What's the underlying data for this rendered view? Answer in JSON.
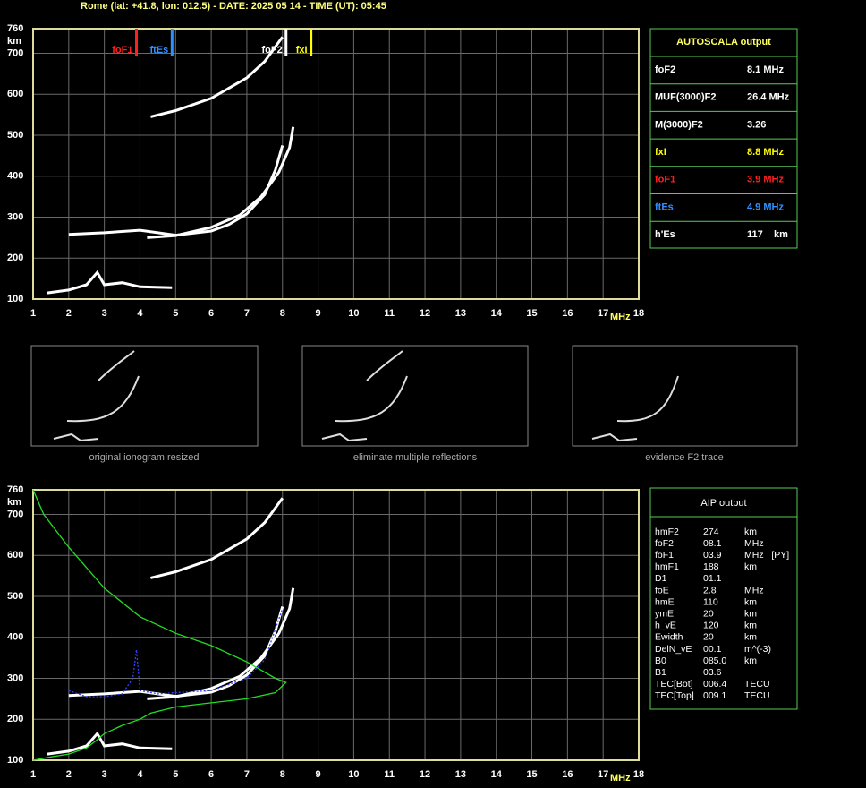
{
  "header": "Rome (lat: +41.8, lon: 012.5) - DATE: 2025 05 14 - TIME (UT): 05:45",
  "chart_data": [
    {
      "type": "scatter",
      "xlabel": "MHz",
      "ylabel": "km",
      "xlim": [
        1,
        18
      ],
      "xticks": [
        1,
        2,
        3,
        4,
        5,
        6,
        7,
        8,
        9,
        10,
        11,
        12,
        13,
        14,
        15,
        16,
        17,
        18
      ],
      "ylim": [
        100,
        760
      ],
      "yticks": [
        100,
        200,
        300,
        400,
        500,
        600,
        700,
        760
      ],
      "grid": true,
      "series": [
        {
          "color": "#ffffff",
          "x": [
            2.0,
            3.0,
            4.0,
            5.0,
            6.0,
            6.5,
            7.0,
            7.5,
            7.8,
            8.0
          ],
          "y": [
            258,
            262,
            268,
            256,
            266,
            282,
            308,
            355,
            415,
            475
          ]
        },
        {
          "color": "#ffffff",
          "x": [
            4.2,
            5.0,
            6.0,
            6.8,
            7.4,
            7.9,
            8.2,
            8.3
          ],
          "y": [
            250,
            255,
            275,
            305,
            350,
            410,
            470,
            520
          ]
        },
        {
          "color": "#ffffff",
          "x": [
            4.3,
            5.0,
            6.0,
            7.0,
            7.5,
            8.0
          ],
          "y": [
            545,
            560,
            590,
            640,
            680,
            740
          ]
        },
        {
          "color": "#ffffff",
          "x": [
            1.4,
            2.0,
            2.5,
            2.8,
            3.0,
            3.5,
            4.0,
            4.9
          ],
          "y": [
            115,
            122,
            135,
            165,
            135,
            140,
            130,
            128
          ]
        }
      ],
      "markers": [
        {
          "label": "foF1",
          "x": 3.9,
          "color": "#ff2020"
        },
        {
          "label": "ftEs",
          "x": 4.9,
          "color": "#3090ff"
        },
        {
          "label": "foF2",
          "x": 8.1,
          "color": "#ffffff"
        },
        {
          "label": "fxI",
          "x": 8.8,
          "color": "#ffff00"
        }
      ]
    },
    {
      "type": "scatter",
      "xlabel": "MHz",
      "ylabel": "km",
      "xlim": [
        1,
        18
      ],
      "xticks": [
        1,
        2,
        3,
        4,
        5,
        6,
        7,
        8,
        9,
        10,
        11,
        12,
        13,
        14,
        15,
        16,
        17,
        18
      ],
      "ylim": [
        100,
        760
      ],
      "yticks": [
        100,
        200,
        300,
        400,
        500,
        600,
        700,
        760
      ],
      "grid": true,
      "series": [
        {
          "color": "#ffffff",
          "x": [
            2.0,
            3.0,
            4.0,
            5.0,
            6.0,
            6.5,
            7.0,
            7.5,
            7.8,
            8.0
          ],
          "y": [
            258,
            262,
            268,
            256,
            266,
            282,
            308,
            355,
            415,
            475
          ]
        },
        {
          "color": "#ffffff",
          "x": [
            4.2,
            5.0,
            6.0,
            6.8,
            7.4,
            7.9,
            8.2,
            8.3
          ],
          "y": [
            250,
            255,
            275,
            305,
            350,
            410,
            470,
            520
          ]
        },
        {
          "color": "#ffffff",
          "x": [
            4.3,
            5.0,
            6.0,
            7.0,
            7.5,
            8.0
          ],
          "y": [
            545,
            560,
            590,
            640,
            680,
            740
          ]
        },
        {
          "color": "#ffffff",
          "x": [
            1.4,
            2.0,
            2.5,
            2.8,
            3.0,
            3.5,
            4.0,
            4.9
          ],
          "y": [
            115,
            122,
            135,
            165,
            135,
            140,
            130,
            128
          ]
        },
        {
          "color": "#22dd22",
          "x": [
            1.0,
            1.3,
            2.0,
            3.0,
            4.0,
            5.0,
            6.0,
            7.0,
            7.8,
            8.1,
            7.8,
            7.0,
            6.0,
            5.0,
            4.3,
            4.0,
            3.5,
            3.0,
            2.8,
            2.5,
            2.0,
            1.5,
            1.0
          ],
          "y": [
            760,
            700,
            620,
            520,
            450,
            410,
            380,
            340,
            300,
            290,
            265,
            250,
            240,
            230,
            215,
            200,
            185,
            165,
            150,
            130,
            115,
            108,
            100
          ]
        },
        {
          "color": "#3040ff",
          "x": [
            2.0,
            2.5,
            3.0,
            3.5,
            3.8,
            3.9,
            4.0,
            4.5,
            5.0,
            6.0,
            7.0,
            7.5,
            8.0
          ],
          "y": [
            270,
            255,
            255,
            262,
            300,
            370,
            270,
            262,
            265,
            270,
            300,
            345,
            470
          ]
        }
      ]
    }
  ],
  "thumbnails": [
    "original ionogram resized",
    "eliminate multiple reflections",
    "evidence F2 trace"
  ],
  "autoscala": {
    "title": "AUTOSCALA output",
    "rows": [
      {
        "label": "foF2",
        "value": "8.1 MHz",
        "color": "#ffffff"
      },
      {
        "label": "MUF(3000)F2",
        "value": "26.4 MHz",
        "color": "#ffffff"
      },
      {
        "label": "M(3000)F2",
        "value": "3.26",
        "color": "#ffffff"
      },
      {
        "label": "fxI",
        "value": "8.8 MHz",
        "color": "#ffff00"
      },
      {
        "label": "foF1",
        "value": "3.9 MHz",
        "color": "#ff2020"
      },
      {
        "label": "ftEs",
        "value": "4.9 MHz",
        "color": "#3090ff"
      },
      {
        "label": "h'Es",
        "value": "117    km",
        "color": "#ffffff"
      }
    ]
  },
  "aip": {
    "title": "AIP output",
    "rows": [
      [
        "hmF2",
        "274",
        "km"
      ],
      [
        "foF2",
        "08.1",
        "MHz"
      ],
      [
        "foF1",
        "03.9",
        "MHz   [PY]"
      ],
      [
        "hmF1",
        "188",
        "km"
      ],
      [
        "D1",
        "01.1",
        ""
      ],
      [
        "foE",
        "2.8",
        "MHz"
      ],
      [
        "hmE",
        "110",
        "km"
      ],
      [
        "ymE",
        "20",
        "km"
      ],
      [
        "h_vE",
        "120",
        "km"
      ],
      [
        "Ewidth",
        "20",
        "km"
      ],
      [
        "DelN_vE",
        "00.1",
        "m^(-3)"
      ],
      [
        "B0",
        "085.0",
        "km"
      ],
      [
        "B1",
        "03.6",
        ""
      ],
      [
        "TEC[Bot]",
        "006.4",
        "TECU"
      ],
      [
        "TEC[Top]",
        "009.1",
        "TECU"
      ]
    ]
  }
}
